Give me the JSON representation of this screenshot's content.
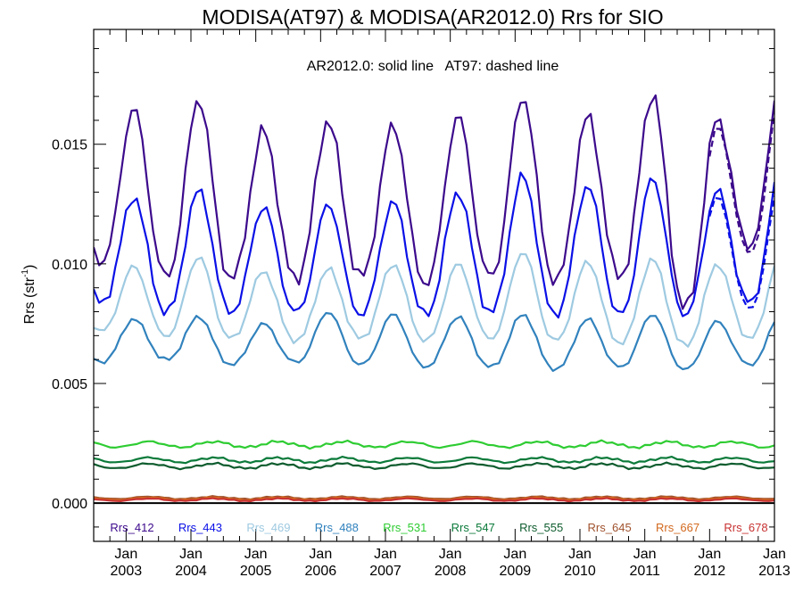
{
  "chart_data": {
    "type": "line",
    "title": "MODISA(AT97) & MODISA(AR2012.0)  Rrs for SIO",
    "annotation": "AR2012.0: solid line   AT97: dashed line",
    "ylabel": "Rrs (str",
    "ylabel_sup": "-1",
    "ylabel_close": ")",
    "xlabel": "",
    "ylim": [
      -0.0016,
      0.0198
    ],
    "xlim": [
      2002.5,
      2013.0
    ],
    "yticks": [
      0.0,
      0.005,
      0.01,
      0.015
    ],
    "ytick_labels": [
      "0.000",
      "0.005",
      "0.010",
      "0.015"
    ],
    "x_ticks": [
      {
        "x": 2003,
        "month": "Jan",
        "year": "2003"
      },
      {
        "x": 2004,
        "month": "Jan",
        "year": "2004"
      },
      {
        "x": 2005,
        "month": "Jan",
        "year": "2005"
      },
      {
        "x": 2006,
        "month": "Jan",
        "year": "2006"
      },
      {
        "x": 2007,
        "month": "Jan",
        "year": "2007"
      },
      {
        "x": 2008,
        "month": "Jan",
        "year": "2008"
      },
      {
        "x": 2009,
        "month": "Jan",
        "year": "2009"
      },
      {
        "x": 2010,
        "month": "Jan",
        "year": "2010"
      },
      {
        "x": 2011,
        "month": "Jan",
        "year": "2011"
      },
      {
        "x": 2012,
        "month": "Jan",
        "year": "2012"
      },
      {
        "x": 2013,
        "month": "Jan",
        "year": "2013"
      }
    ],
    "zero_line": true,
    "grid": false,
    "legend_position": "bottom inside plot",
    "series": [
      {
        "name": "Rrs_412",
        "color": "#3c0a8c",
        "peaks": [
          0.0165,
          0.0169,
          0.0156,
          0.016,
          0.0158,
          0.0162,
          0.017,
          0.0162,
          0.0171,
          0.0161,
          0.0181
        ],
        "troughs": [
          0.0101,
          0.0095,
          0.0094,
          0.0094,
          0.0095,
          0.0092,
          0.0095,
          0.0093,
          0.0095,
          0.0082,
          0.0108
        ],
        "dashed_peaks": [
          null,
          null,
          null,
          null,
          null,
          null,
          null,
          null,
          null,
          0.0153,
          0.017
        ],
        "dashed_troughs": [
          null,
          null,
          null,
          null,
          null,
          null,
          null,
          null,
          null,
          null,
          0.0105
        ]
      },
      {
        "name": "Rrs_443",
        "color": "#0a10e6",
        "peaks": [
          0.0128,
          0.0131,
          0.0124,
          0.0125,
          0.0126,
          0.013,
          0.0137,
          0.0133,
          0.0136,
          0.0131,
          0.0142
        ],
        "troughs": [
          0.0084,
          0.008,
          0.008,
          0.008,
          0.0079,
          0.0079,
          0.008,
          0.0079,
          0.0079,
          0.0079,
          0.0084
        ],
        "dashed_peaks": [
          null,
          null,
          null,
          null,
          null,
          null,
          null,
          null,
          null,
          0.0126,
          0.0138
        ],
        "dashed_troughs": [
          null,
          null,
          null,
          null,
          null,
          null,
          null,
          null,
          null,
          null,
          0.0085
        ]
      },
      {
        "name": "Rrs_469",
        "color": "#9ecae1",
        "peaks": [
          0.0099,
          0.0103,
          0.0097,
          0.0098,
          0.01,
          0.01,
          0.0105,
          0.0101,
          0.0102,
          0.01,
          0.0106
        ],
        "troughs": [
          0.0072,
          0.007,
          0.0069,
          0.0068,
          0.0069,
          0.0068,
          0.0069,
          0.0068,
          0.0067,
          0.0066,
          0.0069
        ],
        "dashed_peaks": [],
        "dashed_troughs": []
      },
      {
        "name": "Rrs_488",
        "color": "#3182bd",
        "peaks": [
          0.0077,
          0.0078,
          0.0075,
          0.008,
          0.0079,
          0.0078,
          0.0079,
          0.0077,
          0.0079,
          0.0076,
          0.008
        ],
        "troughs": [
          0.0059,
          0.006,
          0.0058,
          0.0059,
          0.0058,
          0.0057,
          0.0057,
          0.0056,
          0.0057,
          0.0056,
          0.0058
        ],
        "dashed_peaks": [],
        "dashed_troughs": []
      },
      {
        "name": "Rrs_531",
        "color": "#2ecc32",
        "constant": 0.00245,
        "amplitude": 0.00012,
        "dashed_peaks": [],
        "dashed_troughs": []
      },
      {
        "name": "Rrs_547",
        "color": "#0b7a3a",
        "constant": 0.0018,
        "amplitude": 0.0001,
        "dashed_peaks": [],
        "dashed_troughs": []
      },
      {
        "name": "Rrs_555",
        "color": "#0e5c2e",
        "constant": 0.00155,
        "amplitude": 0.0001,
        "dashed_peaks": [],
        "dashed_troughs": []
      },
      {
        "name": "Rrs_645",
        "color": "#a0522d",
        "constant": 0.00022,
        "amplitude": 5e-05,
        "dashed_peaks": [],
        "dashed_troughs": []
      },
      {
        "name": "Rrs_667",
        "color": "#d2691e",
        "constant": 0.00018,
        "amplitude": 5e-05,
        "dashed_peaks": [],
        "dashed_troughs": []
      },
      {
        "name": "Rrs_678",
        "color": "#c83232",
        "constant": 0.00014,
        "amplitude": 5e-05,
        "dashed_peaks": [],
        "dashed_troughs": []
      }
    ]
  }
}
